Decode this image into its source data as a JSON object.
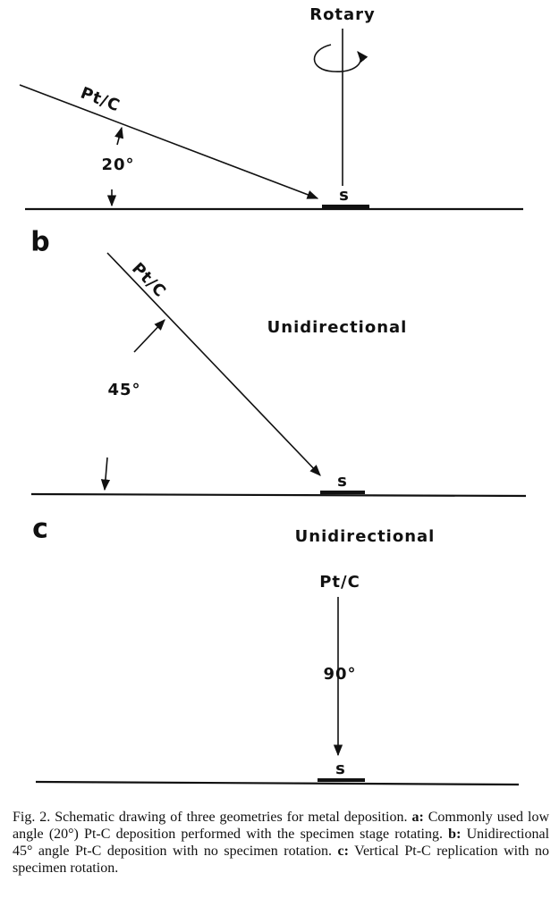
{
  "panel_a": {
    "mode": "Rotary",
    "source": "Pt/C",
    "angle": "20°",
    "specimen": "s"
  },
  "panel_b": {
    "label": "b",
    "mode": "Unidirectional",
    "source": "Pt/C",
    "angle": "45°",
    "specimen": "s"
  },
  "panel_c": {
    "label": "c",
    "mode": "Unidirectional",
    "source": "Pt/C",
    "angle": "90°",
    "specimen": "s"
  },
  "caption": {
    "intro": "Fig. 2.  Schematic drawing of three geometries for metal deposition.",
    "a_label": "a:",
    "a_text": "Commonly used low angle (20°) Pt-C deposition performed with the specimen stage rotating.",
    "b_label": "b:",
    "b_text": "Unidirectional 45° angle Pt-C deposition with no specimen rotation.",
    "c_label": "c:",
    "c_text": "Vertical Pt-C replication with no specimen rotation."
  }
}
